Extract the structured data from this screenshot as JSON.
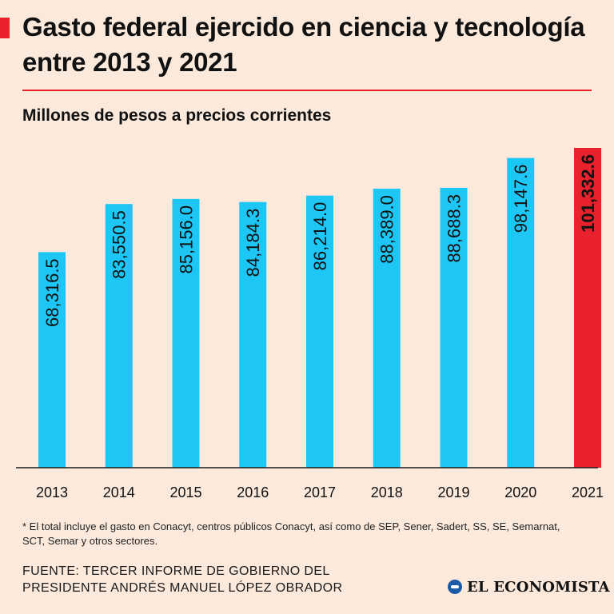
{
  "header": {
    "title": "Gasto federal ejercido en ciencia y tecnología entre 2013 y 2021",
    "subtitle": "Millones de pesos a precios corrientes"
  },
  "colors": {
    "background": "#fbe9dc",
    "bar": "#1ec6f5",
    "highlight": "#e8212c"
  },
  "chart_data": {
    "type": "bar",
    "title": "Gasto federal ejercido en ciencia y tecnología entre 2013 y 2021",
    "subtitle": "Millones de pesos a precios corrientes",
    "categories": [
      "2013",
      "2014",
      "2015",
      "2016",
      "2017",
      "2018",
      "2019",
      "2020",
      "2021"
    ],
    "values": [
      68316.5,
      83550.5,
      85156.0,
      84184.3,
      86214.0,
      88389.0,
      88688.3,
      98147.6,
      101332.6
    ],
    "labels": [
      "68,316.5",
      "83,550.5",
      "85,156.0",
      "84,184.3",
      "86,214.0",
      "88,389.0",
      "88,688.3",
      "98,147.6",
      "101,332.6"
    ],
    "highlight_index": 8,
    "xlabel": "",
    "ylabel": "",
    "ylim": [
      0,
      101332.6
    ],
    "grid": false,
    "legend": "none"
  },
  "footnote": "* El total incluye el gasto en Conacyt, centros públicos Conacyt, así como de SEP, Sener, Sadert, SS, SE, Semarnat, SCT, Semar y otros sectores.",
  "source": "FUENTE: TERCER INFORME DE GOBIERNO DEL PRESIDENTE ANDRÉS MANUEL LÓPEZ OBRADOR",
  "logo": {
    "text": "EL ECONOMISTA",
    "icon": "el-economista-logo-icon"
  }
}
